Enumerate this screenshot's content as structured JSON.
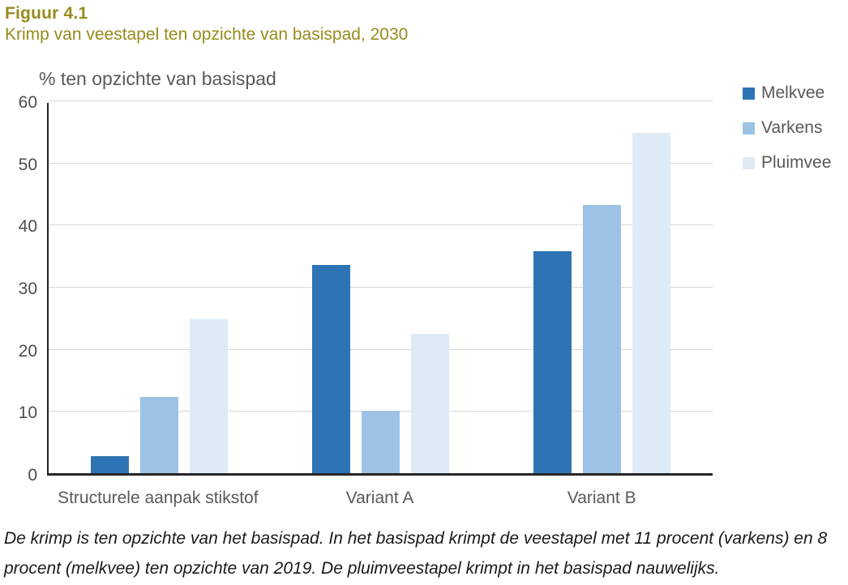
{
  "figure": {
    "label": "Figuur 4.1",
    "title": "Krimp van veestapel ten opzichte van basispad, 2030"
  },
  "chart_data": {
    "type": "bar",
    "title": "% ten opzichte van basispad",
    "ylabel": "% ten opzichte van basispad",
    "xlabel": "",
    "categories": [
      "Structurele aanpak stikstof",
      "Variant A",
      "Variant B"
    ],
    "series": [
      {
        "name": "Melkvee",
        "color": "#2E74B5",
        "values": [
          2.7,
          33.5,
          35.8
        ]
      },
      {
        "name": "Varkens",
        "color": "#9CC3E5",
        "values": [
          12.2,
          10.1,
          43.2
        ]
      },
      {
        "name": "Pluimvee",
        "color": "#DEEAF6",
        "values": [
          24.8,
          22.4,
          54.8
        ]
      }
    ],
    "ylim": [
      0,
      60
    ],
    "yticks": [
      0,
      10,
      20,
      30,
      40,
      50,
      60
    ],
    "grid": true,
    "legend_position": "right-top"
  },
  "footnote": "De krimp is ten opzichte van het basispad. In het basispad krimpt de veestapel met 11 procent (varkens) en 8\nprocent (melkvee) ten opzichte van 2019. De pluimveestapel krimpt in het basispad nauwelijks.",
  "colors": {
    "heading": "#978B1C",
    "axis_text": "#595959",
    "axis_line": "#262626",
    "gridline": "#D9D9D9",
    "footnote_text": "#1A1A1A"
  }
}
